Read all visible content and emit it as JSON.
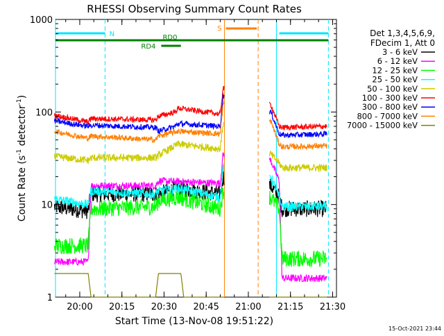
{
  "chart_data": {
    "type": "line",
    "title": "RHESSI Observing Summary Count Rates",
    "xlabel": "Start Time (13-Nov-08 19:51:22)",
    "ylabel": "Count Rate (s⁻¹ detector⁻¹)",
    "ylabel_base": "Count Rate (s",
    "ylabel_sup1": "-1",
    "ylabel_mid": " detector",
    "ylabel_sup2": "-1",
    "ylabel_end": ")",
    "yscale": "log",
    "ylim": [
      1,
      1000
    ],
    "xlim": [
      "19:51:22",
      "21:31:22"
    ],
    "x_tick_labels": [
      "20:00",
      "20:15",
      "20:30",
      "20:45",
      "21:00",
      "21:15",
      "21:30"
    ],
    "y_tick_labels": [
      "1",
      "10",
      "100",
      "1000"
    ],
    "timestamp": "15-Oct-2021 23:44",
    "legend": {
      "position": "right",
      "header1": "Det 1,3,4,5,6,9,",
      "header2": "FDecim 1, Att 0"
    },
    "flags": [
      {
        "label": "N",
        "color": "#00e5ff",
        "segments": [
          [
            "19:51:22",
            "20:09:00"
          ],
          [
            "21:11:00",
            "21:28:30"
          ]
        ]
      },
      {
        "label": "RD0",
        "color": "#008000",
        "segments": [
          [
            "19:51:22",
            "21:28:30"
          ]
        ]
      },
      {
        "label": "RD4",
        "color": "#008000",
        "segments": [
          [
            "20:29:00",
            "20:36:00"
          ]
        ]
      },
      {
        "label": "S",
        "color": "#ff7f00",
        "segments": [
          [
            "20:52:00",
            "21:03:00"
          ]
        ]
      }
    ],
    "markers": [
      {
        "time": "19:51:22",
        "color": "#00e5ff",
        "style": "solid"
      },
      {
        "time": "20:09:00",
        "color": "#00e5ff",
        "style": "dashed"
      },
      {
        "time": "20:51:30",
        "color": "#ff7f00",
        "style": "solid"
      },
      {
        "time": "21:03:30",
        "color": "#ff7f00",
        "style": "dashed"
      },
      {
        "time": "21:10:00",
        "color": "#00e5ff",
        "style": "solid"
      },
      {
        "time": "21:28:30",
        "color": "#00e5ff",
        "style": "dashed"
      }
    ],
    "gaps": [
      [
        "20:51:30",
        "21:07:30"
      ]
    ],
    "series": [
      {
        "name": "3 - 6 keV",
        "color": "#000000",
        "noise": 0.09,
        "points": [
          [
            "19:51",
            9.5
          ],
          [
            "20:03",
            8.5
          ],
          [
            "20:04",
            13
          ],
          [
            "20:27",
            13
          ],
          [
            "20:28",
            13
          ],
          [
            "20:35",
            15
          ],
          [
            "20:50",
            13
          ],
          [
            "20:51",
            20
          ],
          [
            "21:08",
            16
          ],
          [
            "21:11",
            12
          ],
          [
            "21:12",
            9
          ],
          [
            "21:28",
            9
          ]
        ]
      },
      {
        "name": "6 - 12 keV",
        "color": "#ff00ff",
        "noise": 0.04,
        "points": [
          [
            "19:51",
            2.4
          ],
          [
            "20:03",
            2.4
          ],
          [
            "20:04",
            16
          ],
          [
            "20:27",
            16
          ],
          [
            "20:28",
            18
          ],
          [
            "20:50",
            17
          ],
          [
            "20:51",
            35
          ],
          [
            "21:08",
            30
          ],
          [
            "21:11",
            18
          ],
          [
            "21:12",
            1.6
          ],
          [
            "21:28",
            1.6
          ]
        ]
      },
      {
        "name": "12 - 25 keV",
        "color": "#00ff00",
        "noise": 0.09,
        "points": [
          [
            "19:51",
            3.6
          ],
          [
            "20:03",
            3.6
          ],
          [
            "20:04",
            9
          ],
          [
            "20:27",
            9.5
          ],
          [
            "20:28",
            11
          ],
          [
            "20:35",
            12
          ],
          [
            "20:50",
            9
          ],
          [
            "20:51",
            14
          ],
          [
            "21:08",
            12
          ],
          [
            "21:11",
            9
          ],
          [
            "21:12",
            2.6
          ],
          [
            "21:28",
            2.6
          ]
        ]
      },
      {
        "name": "25 - 50 keV",
        "color": "#00ffff",
        "noise": 0.05,
        "points": [
          [
            "19:51",
            11.5
          ],
          [
            "20:03",
            10
          ],
          [
            "20:04",
            14
          ],
          [
            "20:27",
            13
          ],
          [
            "20:28",
            14
          ],
          [
            "20:35",
            15
          ],
          [
            "20:50",
            12
          ],
          [
            "20:51",
            25
          ],
          [
            "21:08",
            20
          ],
          [
            "21:11",
            12
          ],
          [
            "21:12",
            9.5
          ],
          [
            "21:28",
            9.5
          ]
        ]
      },
      {
        "name": "50 - 100 keV",
        "color": "#cccc00",
        "noise": 0.04,
        "points": [
          [
            "19:51",
            33
          ],
          [
            "20:03",
            30
          ],
          [
            "20:04",
            32
          ],
          [
            "20:27",
            32
          ],
          [
            "20:28",
            34
          ],
          [
            "20:35",
            45
          ],
          [
            "20:50",
            40
          ],
          [
            "20:51",
            75
          ],
          [
            "21:08",
            35
          ],
          [
            "21:11",
            28
          ],
          [
            "21:12",
            25
          ],
          [
            "21:28",
            25
          ]
        ]
      },
      {
        "name": "100 - 300 keV",
        "color": "#ff0000",
        "noise": 0.03,
        "points": [
          [
            "19:51",
            92
          ],
          [
            "20:03",
            78
          ],
          [
            "20:04",
            85
          ],
          [
            "20:27",
            82
          ],
          [
            "20:28",
            90
          ],
          [
            "20:34",
            100
          ],
          [
            "20:35",
            110
          ],
          [
            "20:50",
            95
          ],
          [
            "20:51",
            180
          ],
          [
            "21:08",
            120
          ],
          [
            "21:11",
            70
          ],
          [
            "21:12",
            68
          ],
          [
            "21:28",
            70
          ]
        ]
      },
      {
        "name": "300 - 800 keV",
        "color": "#0000ff",
        "noise": 0.03,
        "points": [
          [
            "19:51",
            80
          ],
          [
            "20:03",
            70
          ],
          [
            "20:04",
            72
          ],
          [
            "20:27",
            68
          ],
          [
            "20:28",
            62
          ],
          [
            "20:34",
            70
          ],
          [
            "20:35",
            75
          ],
          [
            "20:50",
            70
          ],
          [
            "20:51",
            150
          ],
          [
            "21:08",
            100
          ],
          [
            "21:11",
            58
          ],
          [
            "21:12",
            56
          ],
          [
            "21:28",
            58
          ]
        ]
      },
      {
        "name": "800 - 7000 keV",
        "color": "#ff7f00",
        "noise": 0.03,
        "points": [
          [
            "19:51",
            62
          ],
          [
            "20:03",
            52
          ],
          [
            "20:04",
            55
          ],
          [
            "20:27",
            50
          ],
          [
            "20:28",
            55
          ],
          [
            "20:35",
            62
          ],
          [
            "20:50",
            58
          ],
          [
            "20:51",
            120
          ],
          [
            "21:08",
            80
          ],
          [
            "21:11",
            45
          ],
          [
            "21:12",
            42
          ],
          [
            "21:28",
            43
          ]
        ]
      },
      {
        "name": "7000 - 15000 keV",
        "color": "#808000",
        "noise": 0.0,
        "points": [
          [
            "19:51",
            1.8
          ],
          [
            "20:03",
            1.8
          ],
          [
            "20:04",
            1
          ],
          [
            "20:27",
            1
          ],
          [
            "20:28",
            1.8
          ],
          [
            "20:36",
            1.8
          ],
          [
            "20:37",
            1
          ],
          [
            "20:50",
            1
          ],
          [
            "21:28",
            1
          ]
        ]
      }
    ]
  }
}
